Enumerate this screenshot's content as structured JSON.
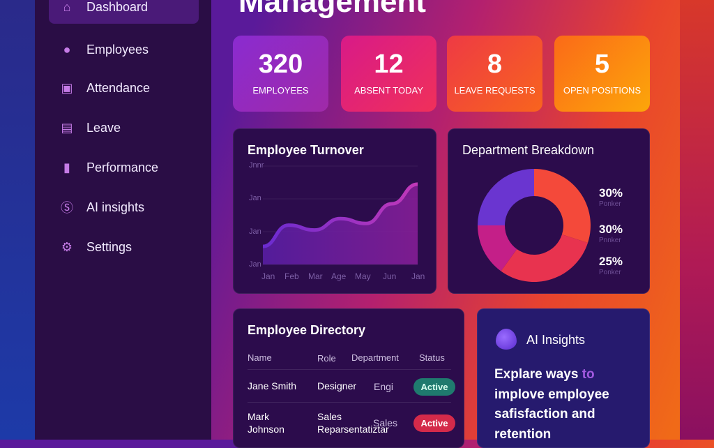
{
  "page": {
    "title": "Management"
  },
  "sidebar": {
    "items": [
      {
        "label": "Dashboard",
        "icon": "home-icon",
        "active": true
      },
      {
        "label": "Employees",
        "icon": "user-icon"
      },
      {
        "label": "Attendance",
        "icon": "calendar-icon"
      },
      {
        "label": "Leave",
        "icon": "document-icon"
      },
      {
        "label": "Performance",
        "icon": "bar-chart-icon"
      },
      {
        "label": "AI insights",
        "icon": "ai-badge-icon"
      },
      {
        "label": "Settings",
        "icon": "gear-icon"
      }
    ]
  },
  "stats": [
    {
      "value": "320",
      "label": "EMPLOYEES",
      "color": "#8a2bd0"
    },
    {
      "value": "12",
      "label": "ABSENT TODAY",
      "color": "#e0207a"
    },
    {
      "value": "8",
      "label": "LEAVE REQUESTS",
      "color": "#f0443a"
    },
    {
      "value": "5",
      "label": "OPEN POSITIONS",
      "color": "#fb8a10"
    }
  ],
  "chart_data": [
    {
      "type": "area",
      "title": "Employee Turnover",
      "categories": [
        "Jan",
        "Feb",
        "Mar",
        "Age",
        "May",
        "Jun",
        "Jan"
      ],
      "y_tick_labels": [
        "Jan",
        "Jan",
        "Jan",
        "Jnnr"
      ],
      "values": [
        0.55,
        1.2,
        1.05,
        1.4,
        1.25,
        1.85,
        2.45
      ],
      "ylim": [
        0,
        3
      ],
      "grid": true,
      "color": "#9b3fd6"
    },
    {
      "type": "pie",
      "title": "Department Breakdown",
      "donut": true,
      "slices": [
        {
          "value": 30,
          "color": "#f4493a"
        },
        {
          "value": 30,
          "color": "#e8334f"
        },
        {
          "value": 15,
          "color": "#c41f88"
        },
        {
          "value": 25,
          "color": "#6a35d0"
        }
      ],
      "legend": [
        {
          "percent": "30%",
          "name": "Ponker"
        },
        {
          "percent": "30%",
          "name": "Pnnker"
        },
        {
          "percent": "25%",
          "name": "Ponker"
        }
      ],
      "legend_position": "right"
    }
  ],
  "directory": {
    "title": "Employee Directory",
    "headers": [
      "Name",
      "Role",
      "Department",
      "Status"
    ],
    "rows": [
      {
        "name": "Jane Smith",
        "role": "Designer",
        "department": "Engi",
        "status": "Active",
        "status_color": "#1f7a6e"
      },
      {
        "name": "Mark Johnson",
        "role": "Sales Reparsentatiztar",
        "department": "Sales",
        "status": "Active",
        "status_color": "#d42a4a"
      }
    ]
  },
  "ai": {
    "title": "AI Insights",
    "text_a": "Explare ways ",
    "text_hl": "to",
    "text_b": " implove employee safisfaction and retention"
  }
}
